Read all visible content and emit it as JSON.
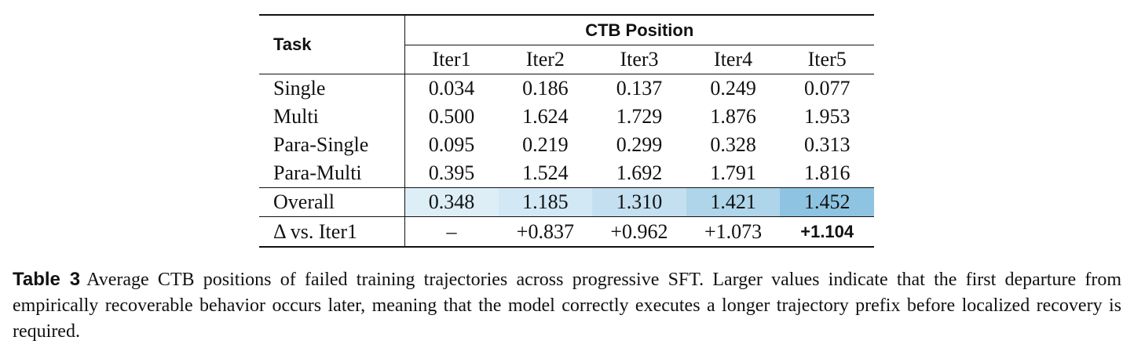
{
  "table": {
    "header": {
      "task": "Task",
      "group": "CTB Position",
      "columns": [
        "Iter1",
        "Iter2",
        "Iter3",
        "Iter4",
        "Iter5"
      ]
    },
    "rows": [
      [
        "Single",
        "0.034",
        "0.186",
        "0.137",
        "0.249",
        "0.077"
      ],
      [
        "Multi",
        "0.500",
        "1.624",
        "1.729",
        "1.876",
        "1.953"
      ],
      [
        "Para-Single",
        "0.095",
        "0.219",
        "0.299",
        "0.328",
        "0.313"
      ],
      [
        "Para-Multi",
        "0.395",
        "1.524",
        "1.692",
        "1.791",
        "1.816"
      ],
      [
        "Overall",
        "0.348",
        "1.185",
        "1.310",
        "1.421",
        "1.452"
      ],
      [
        "Δ vs. Iter1",
        "–",
        "+0.837",
        "+0.962",
        "+1.073",
        "+1.104"
      ]
    ]
  },
  "caption": {
    "label": "Table 3",
    "text": "Average CTB positions of failed training trajectories across progressive SFT. Larger values indicate that the first departure from empirically recoverable behavior occurs later, meaning that the model correctly executes a longer trajectory prefix before localized recovery is required."
  }
}
